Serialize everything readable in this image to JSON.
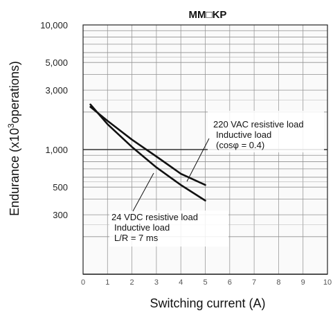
{
  "chart_data": {
    "type": "line",
    "title": "MM□KP",
    "xlabel": "Switching current (A)",
    "ylabel": "Endurance (x10",
    "ylabel_sup": "3",
    "ylabel_tail": "operations)",
    "xlim": [
      0,
      10
    ],
    "ylim": [
      100,
      10000
    ],
    "yscale": "log",
    "grid": true,
    "x_ticks": [
      0,
      1,
      2,
      3,
      4,
      5,
      6,
      7,
      8,
      9,
      10
    ],
    "x_tick_labels": [
      "0",
      "1",
      "2",
      "3",
      "4",
      "5",
      "6",
      "7",
      "8",
      "9",
      "10"
    ],
    "y_ticks": [
      300,
      500,
      1000,
      3000,
      5000,
      10000
    ],
    "y_tick_labels": [
      "300",
      "500",
      "1,000",
      "3,000",
      "5,000",
      "10,000"
    ],
    "series": [
      {
        "name": "220 VAC resistive load Inductive load (cosφ = 0.4)",
        "x": [
          0.3,
          1,
          2,
          3,
          4,
          5
        ],
        "y": [
          2200,
          1700,
          1200,
          880,
          640,
          520
        ]
      },
      {
        "name": "24 VDC resistive load Inductive load L/R = 7 ms",
        "x": [
          0.3,
          1,
          2,
          3,
          4,
          5
        ],
        "y": [
          2300,
          1600,
          1050,
          720,
          520,
          390
        ]
      }
    ],
    "annotations": [
      {
        "lines": [
          "220 VAC resistive load",
          "Inductive load",
          "(cosφ = 0.4)"
        ]
      },
      {
        "lines": [
          "24 VDC resistive load",
          "Inductive load",
          "L/R = 7 ms"
        ]
      }
    ]
  }
}
